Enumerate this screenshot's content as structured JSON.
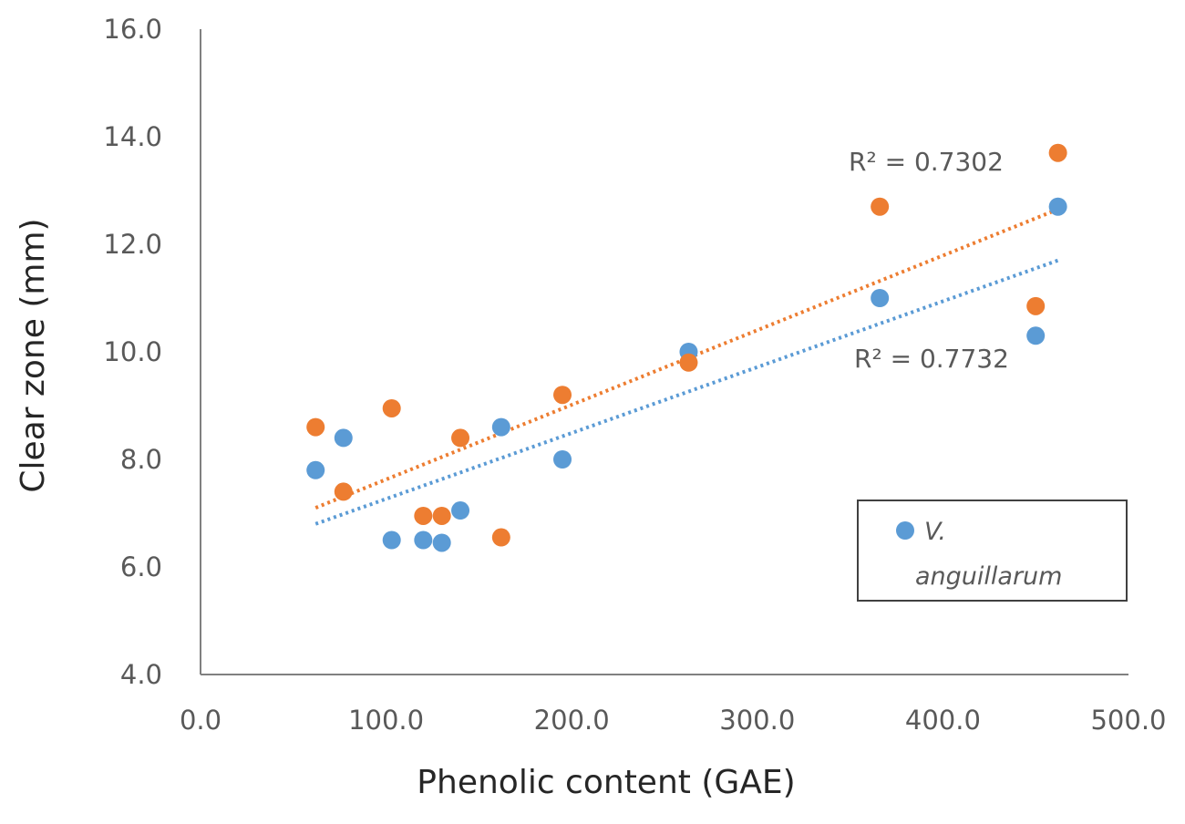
{
  "chart_data": {
    "type": "scatter",
    "xlabel": "Phenolic content (GAE)",
    "ylabel": "Clear zone (mm)",
    "xlim": [
      0,
      500
    ],
    "ylim": [
      4,
      16
    ],
    "x_ticks": [
      "0.0",
      "100.0",
      "200.0",
      "300.0",
      "400.0",
      "500.0"
    ],
    "y_ticks": [
      "4.0",
      "6.0",
      "8.0",
      "10.0",
      "12.0",
      "14.0",
      "16.0"
    ],
    "grid": false,
    "legend_position": "bottom-right",
    "colors": {
      "blue": "#5b9bd5",
      "orange": "#ed7d31",
      "axis": "#808080"
    },
    "series": [
      {
        "name": "V. anguillarum",
        "color": "#5b9bd5",
        "in_legend": true,
        "points": [
          [
            62,
            7.8
          ],
          [
            77,
            8.4
          ],
          [
            103,
            6.5
          ],
          [
            120,
            6.5
          ],
          [
            130,
            6.45
          ],
          [
            140,
            7.05
          ],
          [
            162,
            8.6
          ],
          [
            195,
            8.0
          ],
          [
            263,
            10.0
          ],
          [
            366,
            11.0
          ],
          [
            450,
            10.3
          ],
          [
            462,
            12.7
          ]
        ],
        "trendline": {
          "x0": 62,
          "y0": 6.8,
          "x1": 462,
          "y1": 11.7
        },
        "r2_label": "R² = 0.7732"
      },
      {
        "color": "#ed7d31",
        "in_legend": false,
        "points": [
          [
            62,
            8.6
          ],
          [
            77,
            7.4
          ],
          [
            103,
            8.95
          ],
          [
            120,
            6.95
          ],
          [
            130,
            6.95
          ],
          [
            140,
            8.4
          ],
          [
            162,
            6.55
          ],
          [
            195,
            9.2
          ],
          [
            263,
            9.8
          ],
          [
            366,
            12.7
          ],
          [
            450,
            10.85
          ],
          [
            462,
            13.7
          ]
        ],
        "trendline": {
          "x0": 62,
          "y0": 7.1,
          "x1": 462,
          "y1": 12.65
        },
        "r2_label": "R² = 0.7302"
      }
    ],
    "legend": {
      "line1": "V.",
      "line2": "anguillarum"
    }
  }
}
